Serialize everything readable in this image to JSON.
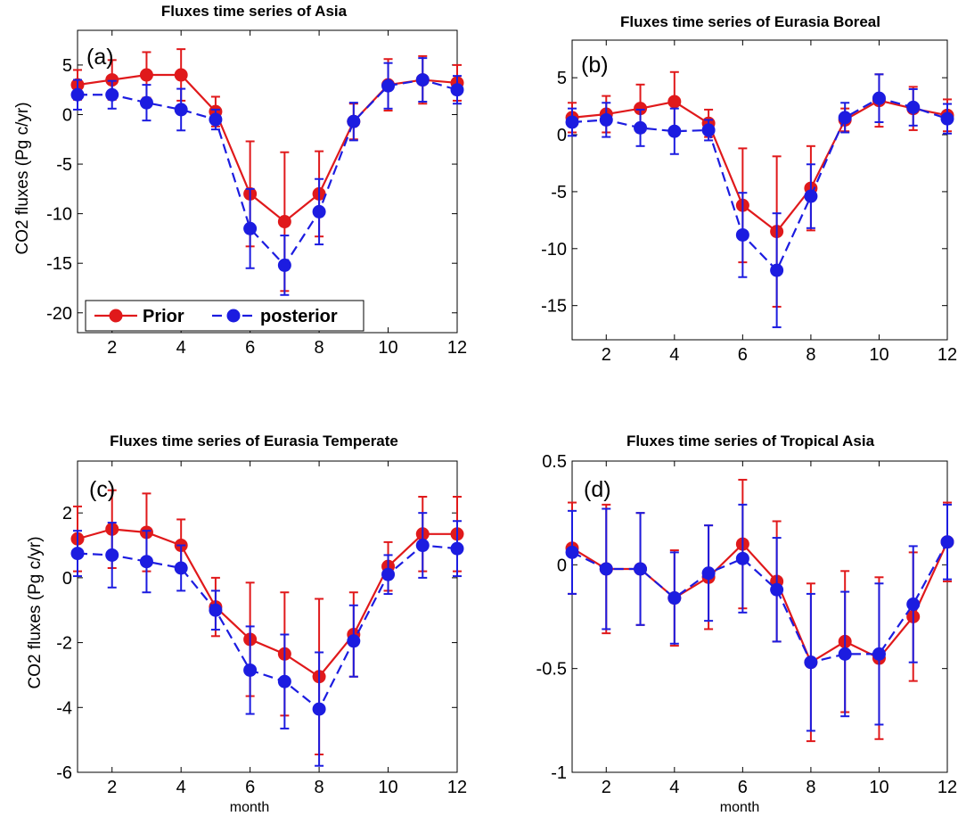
{
  "colors": {
    "prior": "#e0191b",
    "posterior": "#1c1ce0"
  },
  "legend": {
    "items": [
      "Prior",
      "posterior"
    ]
  },
  "chart_data": [
    {
      "type": "line",
      "panel_label": "(a)",
      "title": "Fluxes time series of Asia",
      "ylabel": "CO2 fluxes (Pg c/yr)",
      "xlabel": "",
      "xlim": [
        1,
        12
      ],
      "ylim": [
        -22,
        8.5
      ],
      "xticks": [
        2,
        4,
        6,
        8,
        10,
        12
      ],
      "yticks": [
        -20,
        -15,
        -10,
        -5,
        0,
        5
      ],
      "x": [
        1,
        2,
        3,
        4,
        5,
        6,
        7,
        8,
        9,
        10,
        11,
        12
      ],
      "legend": true,
      "series": [
        {
          "name": "Prior",
          "style": "solid",
          "values": [
            3.0,
            3.5,
            4.0,
            4.0,
            0.3,
            -8.0,
            -10.8,
            -8.0,
            -0.7,
            3.0,
            3.5,
            3.2
          ],
          "errors": [
            1.5,
            2.0,
            2.3,
            2.6,
            1.5,
            5.3,
            7.0,
            4.3,
            1.8,
            2.6,
            2.4,
            1.8
          ]
        },
        {
          "name": "posterior",
          "style": "dashed",
          "values": [
            2.0,
            2.0,
            1.2,
            0.5,
            -0.5,
            -11.5,
            -15.2,
            -9.8,
            -0.7,
            2.9,
            3.5,
            2.5
          ],
          "errors": [
            1.5,
            1.4,
            1.8,
            2.1,
            1.0,
            4.0,
            3.0,
            3.3,
            1.9,
            2.3,
            2.2,
            1.4
          ]
        }
      ]
    },
    {
      "type": "line",
      "panel_label": "(b)",
      "title": "Fluxes time series of Eurasia Boreal",
      "ylabel": "",
      "xlabel": "",
      "xlim": [
        1,
        12
      ],
      "ylim": [
        -18,
        8.3
      ],
      "xticks": [
        2,
        4,
        6,
        8,
        10,
        12
      ],
      "yticks": [
        -15,
        -10,
        -5,
        0,
        5
      ],
      "x": [
        1,
        2,
        3,
        4,
        5,
        6,
        7,
        8,
        9,
        10,
        11,
        12
      ],
      "legend": false,
      "series": [
        {
          "name": "Prior",
          "style": "solid",
          "values": [
            1.5,
            1.8,
            2.3,
            2.9,
            1.0,
            -6.2,
            -8.5,
            -4.7,
            1.3,
            3.0,
            2.3,
            1.7
          ],
          "errors": [
            1.3,
            1.6,
            2.1,
            2.6,
            1.2,
            5.0,
            6.6,
            3.7,
            1.0,
            2.3,
            1.9,
            1.4
          ]
        },
        {
          "name": "posterior",
          "style": "dashed",
          "values": [
            1.1,
            1.3,
            0.6,
            0.3,
            0.4,
            -8.8,
            -11.9,
            -5.4,
            1.5,
            3.2,
            2.4,
            1.4
          ],
          "errors": [
            1.2,
            1.5,
            1.6,
            2.0,
            0.9,
            3.7,
            5.0,
            2.8,
            1.3,
            2.1,
            1.6,
            1.3
          ]
        }
      ]
    },
    {
      "type": "line",
      "panel_label": "(c)",
      "title": "Fluxes time series of Eurasia Temperate",
      "ylabel": "CO2 fluxes (Pg c/yr)",
      "xlabel": "month",
      "xlim": [
        1,
        12
      ],
      "ylim": [
        -6,
        3.6
      ],
      "xticks": [
        2,
        4,
        6,
        8,
        10,
        12
      ],
      "yticks": [
        -6,
        -4,
        -2,
        0,
        2
      ],
      "x": [
        1,
        2,
        3,
        4,
        5,
        6,
        7,
        8,
        9,
        10,
        11,
        12
      ],
      "legend": false,
      "series": [
        {
          "name": "Prior",
          "style": "solid",
          "values": [
            1.2,
            1.5,
            1.4,
            1.0,
            -0.9,
            -1.9,
            -2.35,
            -3.05,
            -1.75,
            0.35,
            1.35,
            1.35
          ],
          "errors": [
            1.0,
            1.2,
            1.2,
            0.8,
            0.9,
            1.75,
            1.9,
            2.4,
            1.3,
            0.75,
            1.15,
            1.15
          ]
        },
        {
          "name": "posterior",
          "style": "dashed",
          "values": [
            0.75,
            0.7,
            0.5,
            0.3,
            -1.0,
            -2.85,
            -3.2,
            -4.05,
            -1.95,
            0.1,
            1.0,
            0.9
          ],
          "errors": [
            0.7,
            1.0,
            0.95,
            0.7,
            0.6,
            1.35,
            1.45,
            1.75,
            1.1,
            0.6,
            1.0,
            0.85
          ]
        }
      ]
    },
    {
      "type": "line",
      "panel_label": "(d)",
      "title": "Fluxes time series of Tropical Asia",
      "ylabel": "",
      "xlabel": "month",
      "xlim": [
        1,
        12
      ],
      "ylim": [
        -1,
        0.5
      ],
      "xticks": [
        2,
        4,
        6,
        8,
        10,
        12
      ],
      "yticks": [
        -1,
        -0.5,
        0,
        0.5
      ],
      "x": [
        1,
        2,
        3,
        4,
        5,
        6,
        7,
        8,
        9,
        10,
        11,
        12
      ],
      "legend": false,
      "series": [
        {
          "name": "Prior",
          "style": "solid",
          "values": [
            0.08,
            -0.02,
            -0.02,
            -0.16,
            -0.06,
            0.1,
            -0.08,
            -0.47,
            -0.37,
            -0.45,
            -0.25,
            0.11
          ],
          "errors": [
            0.22,
            0.31,
            0.27,
            0.23,
            0.25,
            0.31,
            0.29,
            0.38,
            0.34,
            0.39,
            0.31,
            0.19
          ]
        },
        {
          "name": "posterior",
          "style": "dashed",
          "values": [
            0.06,
            -0.02,
            -0.02,
            -0.16,
            -0.04,
            0.03,
            -0.12,
            -0.47,
            -0.43,
            -0.43,
            -0.19,
            0.11
          ],
          "errors": [
            0.2,
            0.29,
            0.27,
            0.22,
            0.23,
            0.26,
            0.25,
            0.33,
            0.3,
            0.34,
            0.28,
            0.18
          ]
        }
      ]
    }
  ]
}
